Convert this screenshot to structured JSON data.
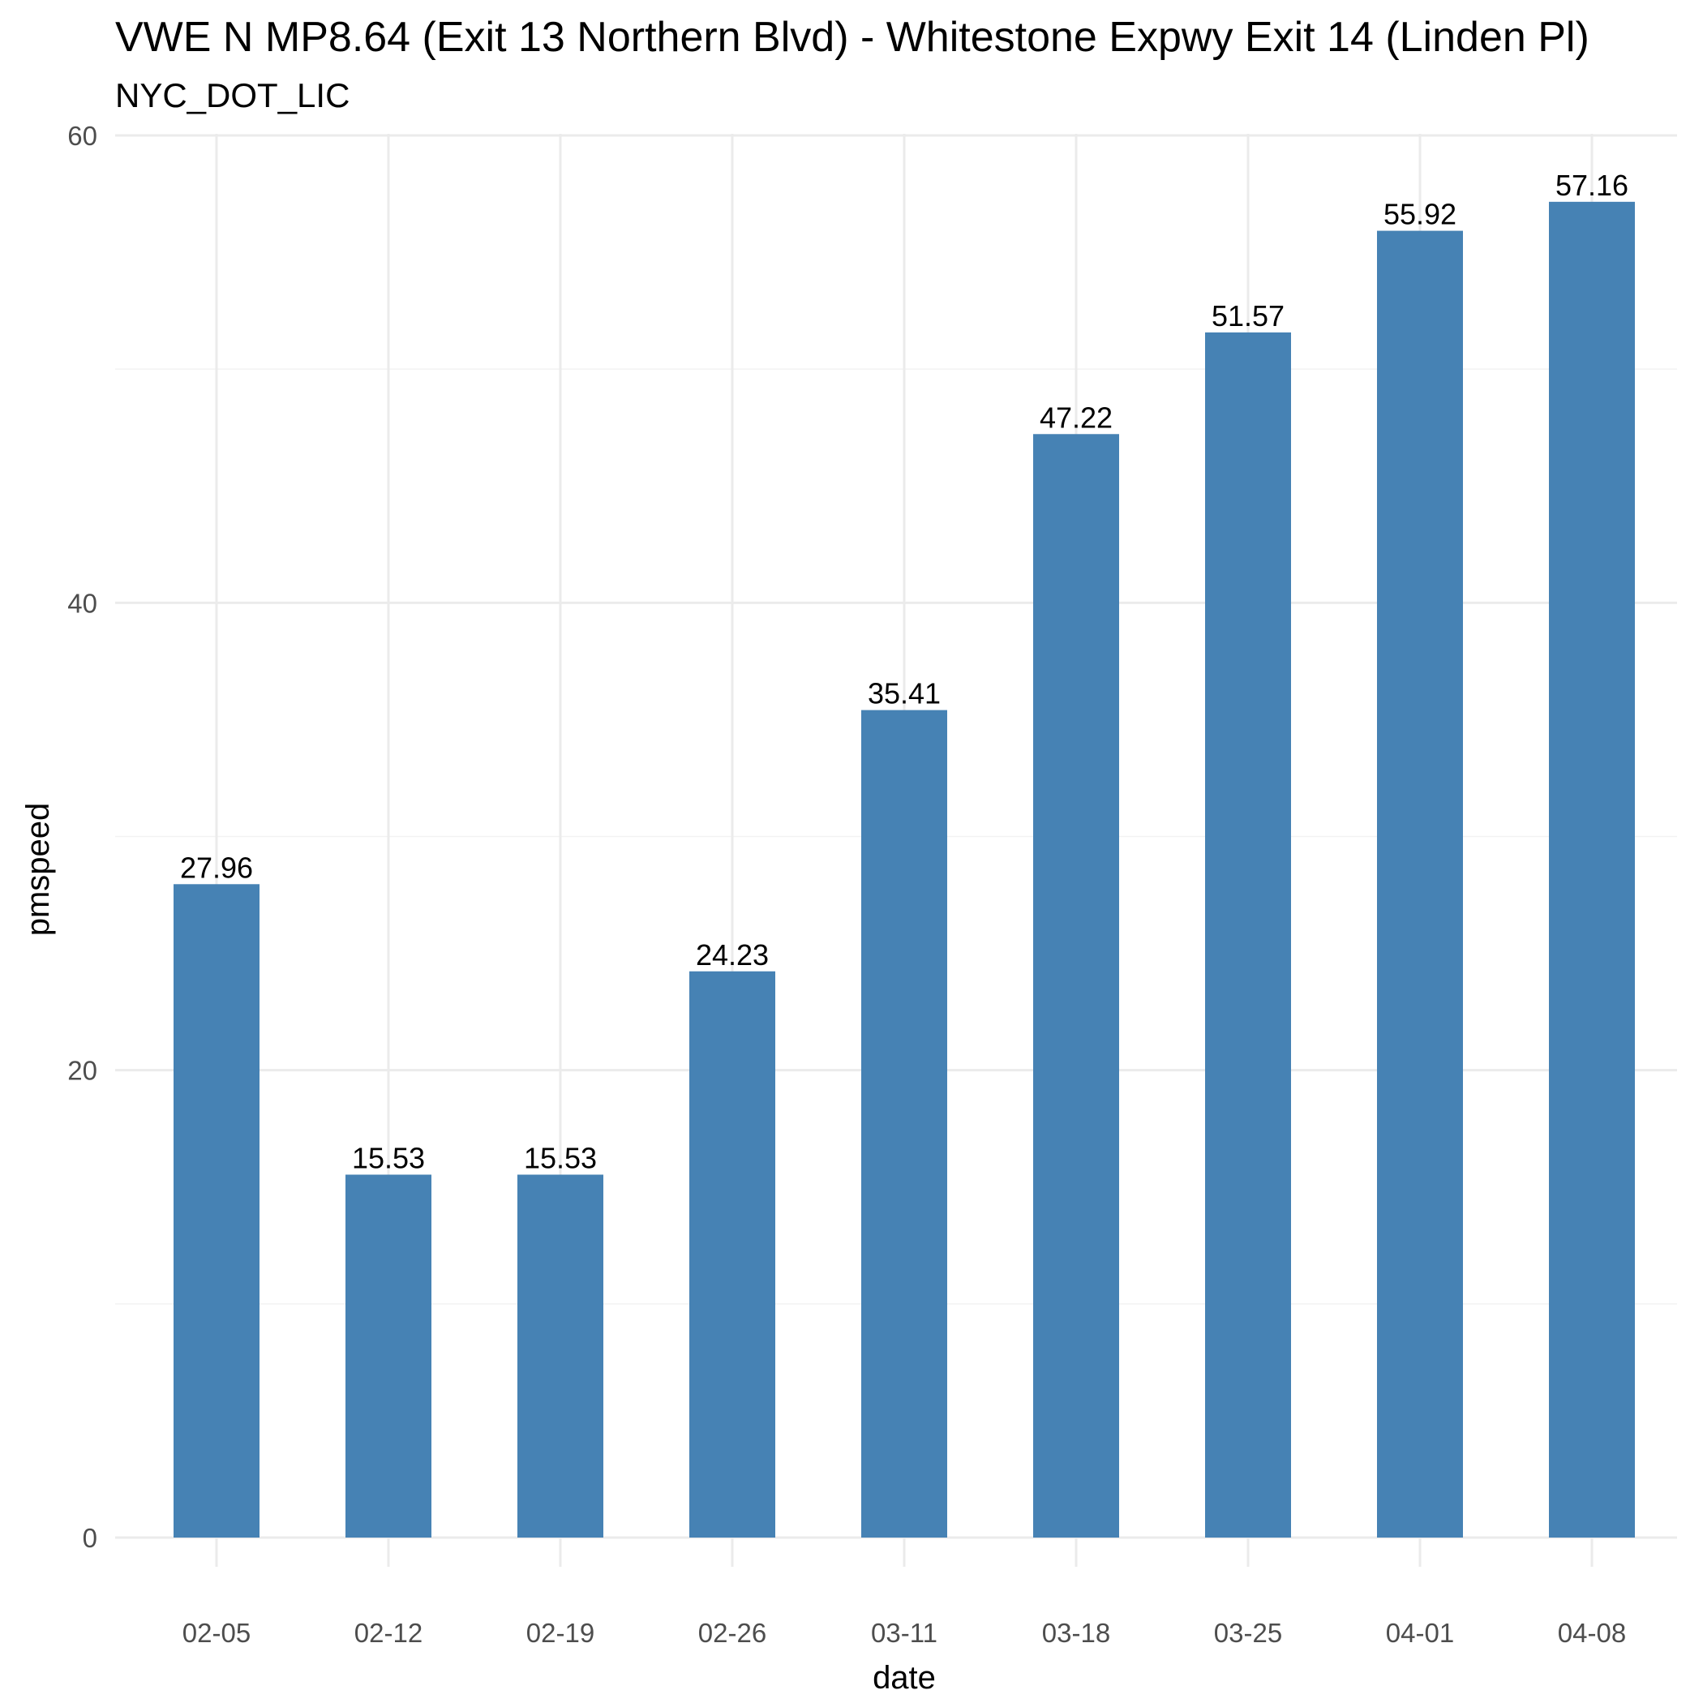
{
  "chart_data": {
    "type": "bar",
    "title": "VWE N MP8.64 (Exit 13 Northern Blvd) - Whitestone Expwy Exit 14 (Linden Pl)",
    "subtitle": "NYC_DOT_LIC",
    "xlabel": "date",
    "ylabel": "pmspeed",
    "categories": [
      "02-05",
      "02-12",
      "02-19",
      "02-26",
      "03-11",
      "03-18",
      "03-25",
      "04-01",
      "04-08"
    ],
    "values": [
      27.96,
      15.53,
      15.53,
      24.23,
      35.41,
      47.22,
      51.57,
      55.92,
      57.16
    ],
    "data_labels": [
      "27.96",
      "15.53",
      "15.53",
      "24.23",
      "35.41",
      "47.22",
      "51.57",
      "55.92",
      "57.16"
    ],
    "ylim": [
      0,
      60
    ],
    "yticks": [
      0,
      20,
      40,
      60
    ],
    "ytick_labels": [
      "0",
      "20",
      "40",
      "60"
    ],
    "grid": true,
    "legend": "none",
    "bar_color": "#4682B4"
  }
}
